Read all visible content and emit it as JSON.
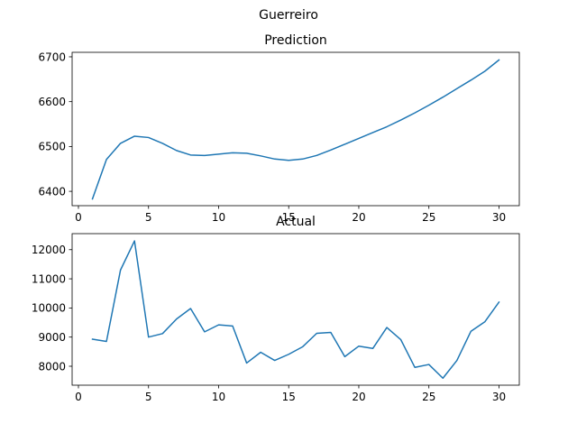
{
  "figure": {
    "suptitle": "Guerreiro"
  },
  "chart_data": [
    {
      "type": "line",
      "title": "Prediction",
      "xlabel": "",
      "ylabel": "",
      "xlim": [
        -0.45,
        31.45
      ],
      "ylim": [
        6368,
        6710
      ],
      "xticks": [
        0,
        5,
        10,
        15,
        20,
        25,
        30
      ],
      "yticks": [
        6400,
        6500,
        6600,
        6700
      ],
      "grid": false,
      "color": "#1f77b4",
      "series": [
        {
          "x": [
            1,
            2,
            3,
            4,
            5,
            6,
            7,
            8,
            9,
            10,
            11,
            12,
            13,
            14,
            15,
            16,
            17,
            18,
            19,
            20,
            21,
            22,
            23,
            24,
            25,
            26,
            27,
            28,
            29,
            30
          ],
          "values": [
            6383,
            6471,
            6507,
            6523,
            6520,
            6507,
            6491,
            6481,
            6480,
            6483,
            6486,
            6485,
            6479,
            6472,
            6469,
            6472,
            6480,
            6492,
            6505,
            6518,
            6531,
            6544,
            6559,
            6575,
            6592,
            6610,
            6629,
            6648,
            6668,
            6693
          ]
        }
      ]
    },
    {
      "type": "line",
      "title": "Actual",
      "xlabel": "",
      "ylabel": "",
      "xlim": [
        -0.45,
        31.45
      ],
      "ylim": [
        7350,
        12550
      ],
      "xticks": [
        0,
        5,
        10,
        15,
        20,
        25,
        30
      ],
      "yticks": [
        8000,
        9000,
        10000,
        11000,
        12000
      ],
      "grid": false,
      "color": "#1f77b4",
      "series": [
        {
          "x": [
            1,
            2,
            3,
            4,
            5,
            6,
            7,
            8,
            9,
            10,
            11,
            12,
            13,
            14,
            15,
            16,
            17,
            18,
            19,
            20,
            21,
            22,
            23,
            24,
            25,
            26,
            27,
            28,
            29,
            30
          ],
          "values": [
            8930,
            8850,
            11300,
            12300,
            9000,
            9120,
            9620,
            9980,
            9180,
            9420,
            9380,
            8110,
            8480,
            8200,
            8410,
            8670,
            9130,
            9160,
            8330,
            8690,
            8610,
            9330,
            8910,
            7960,
            8060,
            7590,
            8200,
            9200,
            9530,
            10200
          ]
        }
      ]
    }
  ]
}
